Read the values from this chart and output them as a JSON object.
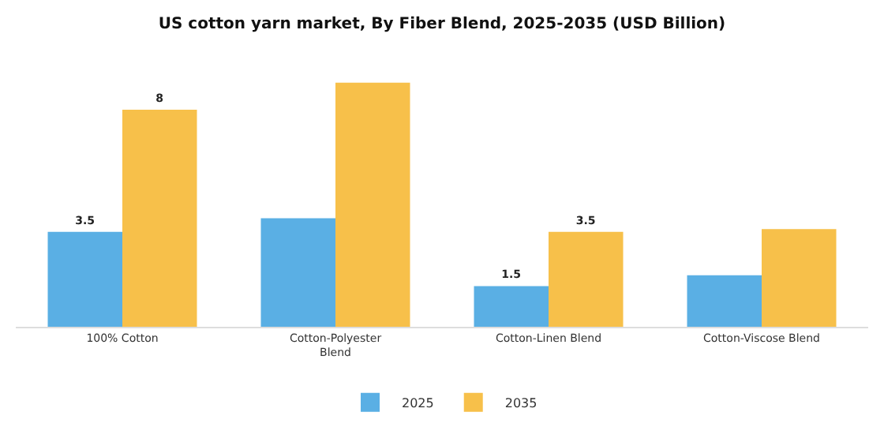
{
  "chart_data": {
    "type": "bar",
    "title": "US cotton yarn market, By Fiber Blend, 2025-2035 (USD Billion)",
    "categories": [
      "100% Cotton",
      "Cotton-Polyester\nBlend",
      "Cotton-Linen Blend",
      "Cotton-Viscose Blend"
    ],
    "series": [
      {
        "name": "2025",
        "color": "#5aafe4",
        "values": [
          3.5,
          4.0,
          1.5,
          1.9
        ],
        "value_labels": [
          "3.5",
          null,
          "1.5",
          null
        ]
      },
      {
        "name": "2035",
        "color": "#f7c04a",
        "values": [
          8,
          9.0,
          3.5,
          3.6
        ],
        "value_labels": [
          "8",
          null,
          "3.5",
          null
        ]
      }
    ],
    "legend": "bottom"
  }
}
